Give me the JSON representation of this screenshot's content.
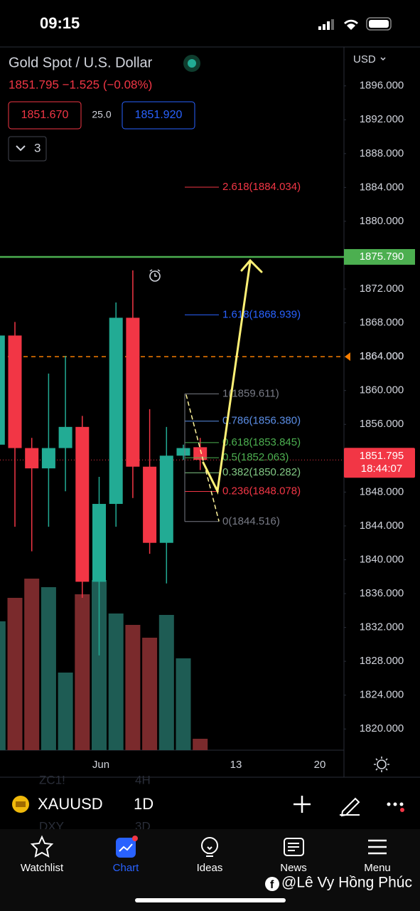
{
  "status": {
    "time": "09:15"
  },
  "header": {
    "symbol_name": "Gold Spot / U.S. Dollar",
    "price_line": "1851.795 −1.525 (−0.08%)",
    "bid": "1851.670",
    "spread": "25.0",
    "ask": "1851.920",
    "indicators": "3",
    "currency": "USD"
  },
  "chart_data": {
    "type": "candlestick",
    "open": [
      1853.6,
      1866.5,
      1853.2,
      1850.8,
      1853.2,
      1855.7,
      1837.4,
      1846.6,
      1868.6,
      1851.0,
      1842.0,
      1852.3,
      1853.3
    ],
    "high": [
      1868.0,
      1868.1,
      1854.4,
      1862.0,
      1864.1,
      1857.0,
      1849.8,
      1870.4,
      1874.2,
      1857.8,
      1855.7,
      1853.6,
      1854.4
    ],
    "low": [
      1852.0,
      1843.9,
      1841.0,
      1843.9,
      1848.1,
      1835.5,
      1828.7,
      1843.9,
      1847.3,
      1840.7,
      1837.2,
      1851.8,
      1850.6
    ],
    "close": [
      1866.5,
      1853.2,
      1850.8,
      1853.2,
      1855.7,
      1837.4,
      1846.6,
      1868.6,
      1851.0,
      1842.0,
      1852.3,
      1853.2,
      1851.8
    ],
    "volume": [
      181,
      214,
      241,
      229,
      109,
      219,
      239,
      192,
      176,
      158,
      190,
      129,
      16
    ],
    "up_color": "#22ab94",
    "down_color": "#f23645",
    "vol_up_color": "#1e5c54",
    "vol_down_color": "#7a2a2c",
    "ylim": [
      1817.5,
      1900.6
    ],
    "yticks": [
      {
        "value": 1896,
        "label": "1896.000"
      },
      {
        "value": 1892,
        "label": "1892.000"
      },
      {
        "value": 1888,
        "label": "1888.000"
      },
      {
        "value": 1884,
        "label": "1884.000"
      },
      {
        "value": 1880,
        "label": "1880.000"
      },
      {
        "value": 1876,
        "label": "1876.000"
      },
      {
        "value": 1872,
        "label": "1872.000"
      },
      {
        "value": 1868,
        "label": "1868.000"
      },
      {
        "value": 1864,
        "label": "1864.000"
      },
      {
        "value": 1860,
        "label": "1860.000"
      },
      {
        "value": 1856,
        "label": "1856.000"
      },
      {
        "value": 1852,
        "label": "1852.000"
      },
      {
        "value": 1848,
        "label": "1848.000"
      },
      {
        "value": 1844,
        "label": "1844.000"
      },
      {
        "value": 1840,
        "label": "1840.000"
      },
      {
        "value": 1836,
        "label": "1836.000"
      },
      {
        "value": 1832,
        "label": "1832.000"
      },
      {
        "value": 1828,
        "label": "1828.000"
      },
      {
        "value": 1824,
        "label": "1824.000"
      },
      {
        "value": 1820,
        "label": "1820.000"
      }
    ],
    "xlabels": [
      "Jun",
      "13",
      "20"
    ],
    "fib": [
      {
        "label": "2.618(1884.034)",
        "price": 1884.034,
        "color": "#f23645"
      },
      {
        "label": "1.618(1868.939)",
        "price": 1868.939,
        "color": "#2962ff"
      },
      {
        "label": "1(1859.611)",
        "price": 1859.611,
        "color": "#787b86"
      },
      {
        "label": "0.786(1856.380)",
        "price": 1856.38,
        "color": "#5b8ee6"
      },
      {
        "label": "0.618(1853.845)",
        "price": 1853.845,
        "color": "#4caf50"
      },
      {
        "label": "0.5(1852.063)",
        "price": 1852.063,
        "color": "#4caf50"
      },
      {
        "label": "0.382(1850.282)",
        "price": 1850.282,
        "color": "#81c784"
      },
      {
        "label": "0.236(1848.078)",
        "price": 1848.078,
        "color": "#f23645"
      },
      {
        "label": "0(1844.516)",
        "price": 1844.516,
        "color": "#787b86"
      }
    ],
    "target": {
      "value": 1875.79,
      "label": "1875.790",
      "color": "#4caf50"
    },
    "alert": {
      "value": 1864,
      "label": "1864.000",
      "color": "#f57c00"
    },
    "last": {
      "value": 1851.795,
      "label": "1851.795",
      "countdown": "18:44:07",
      "color": "#f23645"
    }
  },
  "toolbar": {
    "symbol": "XAUUSD",
    "interval": "1D",
    "ghost": [
      "ZC1!",
      "4H",
      "DXY",
      "3D"
    ]
  },
  "tabs": [
    "Watchlist",
    "Chart",
    "Ideas",
    "News",
    "Menu"
  ],
  "watermark": "@Lê Vy Hồng Phúc"
}
